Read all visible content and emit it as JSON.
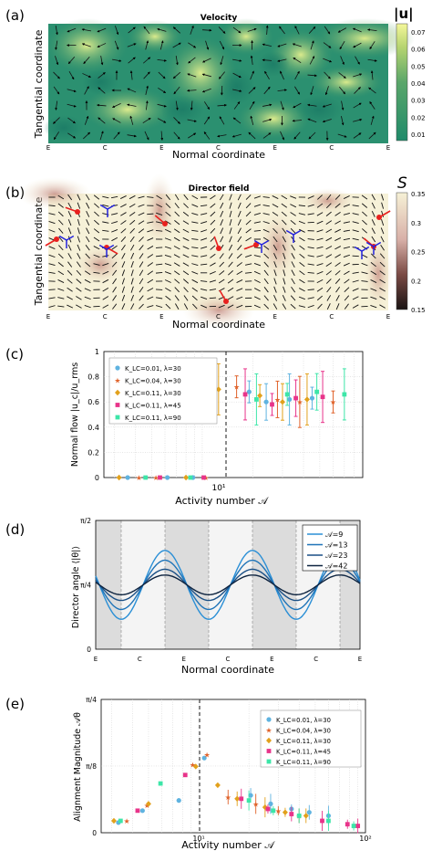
{
  "panels": {
    "a": {
      "letter": "(a)",
      "title": "Velocity",
      "xlabel": "Normal coordinate",
      "ylabel": "Tangential coordinate",
      "xticks": [
        "E",
        "C",
        "E",
        "C",
        "E",
        "C",
        "E"
      ],
      "colorbar_label": "|u|",
      "colorbar_ticks": [
        "0.07",
        "0.06",
        "0.05",
        "0.04",
        "0.03",
        "0.02",
        "0.01"
      ]
    },
    "b": {
      "letter": "(b)",
      "title": "Director field",
      "xlabel": "Normal coordinate",
      "ylabel": "Tangential coordinate",
      "xticks": [
        "E",
        "C",
        "E",
        "C",
        "E",
        "C",
        "E"
      ],
      "colorbar_label": "S",
      "colorbar_ticks": [
        "0.35",
        "0.3",
        "0.25",
        "0.2",
        "0.15"
      ]
    },
    "c": {
      "letter": "(c)",
      "ylabel": "Normal  flow  |u_c|/u_rms",
      "xlabel": "Activity number 𝒜",
      "xtick": "10¹",
      "yticks": [
        "1",
        "0.8",
        "0.6",
        "0.4",
        "0.2",
        "0"
      ]
    },
    "d": {
      "letter": "(d)",
      "ylabel": "Director angle ⟨|θ|⟩",
      "xlabel": "Normal coordinate",
      "yticks": [
        "π/2",
        "π/4",
        "0"
      ],
      "xticks": [
        "E",
        "C",
        "E",
        "C",
        "E",
        "C",
        "E"
      ]
    },
    "e": {
      "letter": "(e)",
      "ylabel": "Alignment Magnitude 𝒜θ",
      "xlabel": "Activity number 𝒜",
      "yticks": [
        "π/4",
        "π/8",
        "0"
      ],
      "xticks": [
        "10¹",
        "10²"
      ]
    }
  },
  "legend_c": [
    {
      "label": "K_LC=0.01, λ=30",
      "color": "#5fb3e0",
      "marker": "circle"
    },
    {
      "label": "K_LC=0.04, λ=30",
      "color": "#e0622a",
      "marker": "star"
    },
    {
      "label": "K_LC=0.11, λ=30",
      "color": "#e2a11c",
      "marker": "diamond"
    },
    {
      "label": "K_LC=0.11, λ=45",
      "color": "#e8348a",
      "marker": "square"
    },
    {
      "label": "K_LC=0.11, λ=90",
      "color": "#3de6a8",
      "marker": "square"
    }
  ],
  "legend_d": [
    {
      "label": "𝒜=9",
      "color": "#2a8fd6"
    },
    {
      "label": "𝒜=13",
      "color": "#1f74b8"
    },
    {
      "label": "𝒜=23",
      "color": "#1a4f85"
    },
    {
      "label": "𝒜=42",
      "color": "#0e2440"
    }
  ],
  "chart_data": [
    {
      "type": "scatter",
      "panel": "c",
      "ylim": [
        0,
        1
      ],
      "xscale": "log",
      "series": [
        {
          "name": "K_LC=0.01, λ=30",
          "x": [
            3.6,
            6.2,
            8.8,
            19,
            24,
            33,
            45
          ],
          "y": [
            0,
            0,
            0,
            0.68,
            0.6,
            0.62,
            0.63
          ]
        },
        {
          "name": "K_LC=0.04, λ=30",
          "x": [
            4.2,
            5.3,
            10.5,
            16,
            28,
            38,
            60
          ],
          "y": [
            0,
            0,
            0,
            0.72,
            0.62,
            0.6,
            0.6
          ]
        },
        {
          "name": "K_LC=0.11, λ=30",
          "x": [
            3.2,
            8.0,
            12.5,
            22,
            30,
            42
          ],
          "y": [
            0,
            0,
            0.7,
            0.65,
            0.6,
            0.62
          ]
        },
        {
          "name": "K_LC=0.11, λ=45",
          "x": [
            5.6,
            10.2,
            18,
            26,
            36,
            52
          ],
          "y": [
            0,
            0,
            0.66,
            0.58,
            0.63,
            0.64
          ]
        },
        {
          "name": "K_LC=0.11, λ=90",
          "x": [
            4.6,
            8.5,
            21,
            32,
            48,
            70
          ],
          "y": [
            0,
            0,
            0.62,
            0.66,
            0.68,
            0.66
          ]
        }
      ]
    },
    {
      "type": "line",
      "panel": "d",
      "ylim": [
        0,
        1.5708
      ],
      "series": [
        {
          "name": "𝒜=9",
          "mean": 0.785,
          "amplitude": 0.42
        },
        {
          "name": "𝒜=13",
          "mean": 0.785,
          "amplitude": 0.3
        },
        {
          "name": "𝒜=23",
          "mean": 0.785,
          "amplitude": 0.19
        },
        {
          "name": "𝒜=42",
          "mean": 0.785,
          "amplitude": 0.12
        }
      ]
    },
    {
      "type": "scatter",
      "panel": "e",
      "ylim": [
        0,
        0.785
      ],
      "xscale": "log",
      "series": [
        {
          "name": "K_LC=0.01, λ=30",
          "x": [
            3.3,
            4.6,
            7.6,
            10.8,
            20.5,
            27,
            36,
            46,
            60
          ],
          "y": [
            0.06,
            0.13,
            0.19,
            0.44,
            0.22,
            0.17,
            0.14,
            0.12,
            0.1
          ]
        },
        {
          "name": "K_LC=0.04, λ=30",
          "x": [
            3.7,
            4.9,
            9.2,
            11.2,
            15,
            22,
            30,
            40
          ],
          "y": [
            0.07,
            0.16,
            0.4,
            0.46,
            0.21,
            0.17,
            0.13,
            0.1
          ]
        },
        {
          "name": "K_LC=0.11, λ=30",
          "x": [
            3.1,
            5.0,
            9.6,
            13,
            17,
            25,
            33,
            44
          ],
          "y": [
            0.07,
            0.17,
            0.39,
            0.28,
            0.2,
            0.15,
            0.12,
            0.1
          ]
        },
        {
          "name": "K_LC=0.11, λ=45",
          "x": [
            4.3,
            8.3,
            18,
            26,
            36,
            55,
            78,
            90
          ],
          "y": [
            0.13,
            0.34,
            0.2,
            0.14,
            0.11,
            0.07,
            0.05,
            0.04
          ]
        },
        {
          "name": "K_LC=0.11, λ=90",
          "x": [
            3.4,
            5.9,
            20,
            28,
            40,
            60,
            85
          ],
          "y": [
            0.07,
            0.29,
            0.19,
            0.13,
            0.1,
            0.07,
            0.04
          ]
        }
      ]
    }
  ]
}
